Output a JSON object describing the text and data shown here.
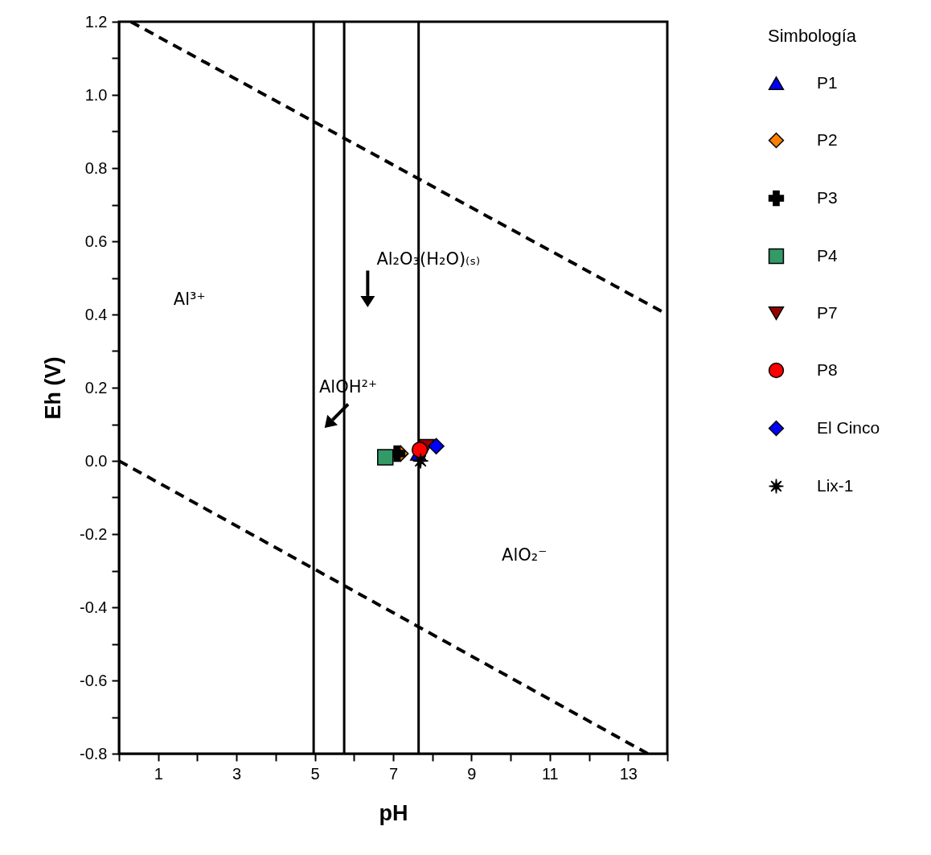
{
  "chart_data": {
    "type": "scatter",
    "xlabel": "pH",
    "ylabel": "Eh (V)",
    "legend_title": "Simbología",
    "legend": "right",
    "grid": false,
    "xlim": [
      0,
      14
    ],
    "ylim": [
      -0.8,
      1.2
    ],
    "xticks": [
      {
        "value": 0,
        "label": null
      },
      1,
      {
        "value": 2,
        "label": null
      },
      3,
      {
        "value": 4,
        "label": null
      },
      5,
      {
        "value": 6,
        "label": null
      },
      7,
      {
        "value": 8,
        "label": null
      },
      9,
      {
        "value": 10,
        "label": null
      },
      11,
      {
        "value": 12,
        "label": null
      },
      13,
      {
        "value": 14,
        "label": null
      }
    ],
    "yticks": [
      -0.8,
      {
        "value": -0.7,
        "label": null
      },
      -0.6,
      {
        "value": -0.5,
        "label": null
      },
      -0.4,
      {
        "value": -0.3,
        "label": null
      },
      -0.2,
      {
        "value": -0.1,
        "label": null
      },
      {
        "value": 0,
        "label": "0.0"
      },
      {
        "value": 0.1,
        "label": null
      },
      0.2,
      {
        "value": 0.3,
        "label": null
      },
      0.4,
      {
        "value": 0.5,
        "label": null
      },
      0.6,
      {
        "value": 0.7,
        "label": null
      },
      0.8,
      {
        "value": 0.9,
        "label": null
      },
      {
        "value": 1,
        "label": "1.0"
      },
      {
        "value": 1.1,
        "label": null
      },
      1.2
    ],
    "series": [
      {
        "type": "line",
        "color": "#000000",
        "line_style": "dashed",
        "marker": "none",
        "x": [
          0.3,
          14
        ],
        "values": [
          1.2,
          0.4
        ]
      },
      {
        "type": "line",
        "color": "#000000",
        "line_style": "dashed",
        "marker": "none",
        "x": [
          0,
          13.5
        ],
        "values": [
          0,
          -0.8
        ]
      },
      {
        "name": "P1",
        "marker": "triangle",
        "color": "#0000ff",
        "x": [
          7.64
        ],
        "values": [
          0.02
        ]
      },
      {
        "name": "P2",
        "marker": "diamond",
        "color": "#ff7f00",
        "x": [
          7.19
        ],
        "values": [
          0.02
        ]
      },
      {
        "name": "P3",
        "marker": "cross",
        "color": "#000000",
        "x": [
          7.1
        ],
        "values": [
          0.02
        ]
      },
      {
        "name": "P4",
        "marker": "square",
        "color": "#339966",
        "x": [
          6.8
        ],
        "values": [
          0.01
        ]
      },
      {
        "name": "P7",
        "marker": "triangle-down",
        "color": "#990000",
        "x": [
          7.85
        ],
        "values": [
          0.04
        ]
      },
      {
        "name": "P8",
        "marker": "circle",
        "color": "#ff0000",
        "x": [
          7.68
        ],
        "values": [
          0.03
        ]
      },
      {
        "name": "El Cinco",
        "marker": "diamond",
        "color": "#0000ff",
        "x": [
          8.1
        ],
        "values": [
          0.04
        ]
      },
      {
        "name": "Lix-1",
        "marker": "star",
        "color": "#000000",
        "x": [
          7.7
        ],
        "values": [
          0.0
        ]
      }
    ],
    "ref_lines": [
      {
        "axis": "x",
        "value": 4.97,
        "color": "#000000"
      },
      {
        "axis": "x",
        "value": 5.75,
        "color": "#000000"
      },
      {
        "axis": "x",
        "value": 7.65,
        "color": "#000000"
      }
    ],
    "annotations": [
      "Al³⁺",
      "Al₂O₃(H₂O)₍ₛ₎",
      "AlOH²⁺",
      "AlO₂⁻"
    ]
  }
}
